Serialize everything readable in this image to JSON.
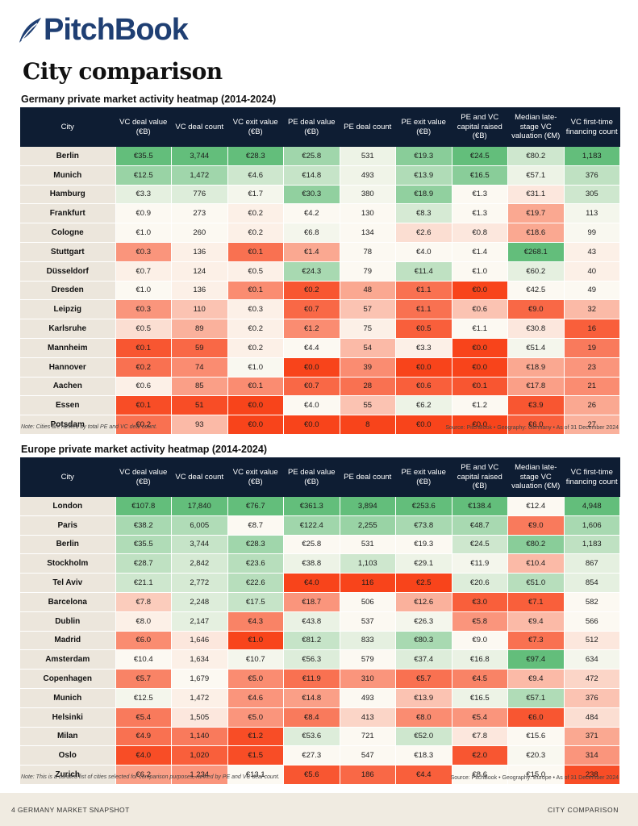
{
  "brand": {
    "name": "PitchBook",
    "color": "#1f3f73"
  },
  "page_title": "City comparison",
  "columns": [
    "City",
    "VC deal value (€B)",
    "VC deal count",
    "VC exit value (€B)",
    "PE deal value (€B)",
    "PE deal count",
    "PE exit value (€B)",
    "PE and VC capital raised (€B)",
    "Median late-stage VC valuation (€M)",
    "VC first-time financing count"
  ],
  "heat_colors": {
    "high": "#63be7b",
    "mid": "#fcf9f2",
    "low": "#f8441b"
  },
  "germany": {
    "title": "Germany private market activity heatmap (2014-2024)",
    "note": "Note: Cities are ranked by total PE and VC deal count.",
    "source": "Source: PitchBook • Geography: Germany • As of 31 December 2024",
    "rows": [
      {
        "city": "Berlin",
        "cells": [
          "€35.5",
          "3,744",
          "€28.3",
          "€25.8",
          "531",
          "€19.3",
          "€24.5",
          "€80.2",
          "1,183"
        ],
        "scores": [
          1,
          1,
          1,
          0.6,
          0.1,
          0.75,
          1,
          0.3,
          1
        ]
      },
      {
        "city": "Munich",
        "cells": [
          "€12.5",
          "1,472",
          "€4.6",
          "€14.8",
          "493",
          "€13.9",
          "€16.5",
          "€57.1",
          "376"
        ],
        "scores": [
          0.65,
          0.6,
          0.3,
          0.35,
          0.08,
          0.5,
          0.75,
          0.1,
          0.4
        ]
      },
      {
        "city": "Hamburg",
        "cells": [
          "€3.3",
          "776",
          "€1.7",
          "€30.3",
          "380",
          "€18.9",
          "€1.3",
          "€31.1",
          "305"
        ],
        "scores": [
          0.15,
          0.2,
          0.05,
          0.7,
          0.05,
          0.7,
          0,
          -0.1,
          0.3
        ]
      },
      {
        "city": "Frankfurt",
        "cells": [
          "€0.9",
          "273",
          "€0.2",
          "€4.2",
          "130",
          "€8.3",
          "€1.3",
          "€19.7",
          "113"
        ],
        "scores": [
          0,
          0,
          -0.05,
          0,
          0,
          0.25,
          0,
          -0.45,
          0.05
        ]
      },
      {
        "city": "Cologne",
        "cells": [
          "€1.0",
          "260",
          "€0.2",
          "€6.8",
          "134",
          "€2.6",
          "€0.8",
          "€18.6",
          "99"
        ],
        "scores": [
          0,
          0,
          -0.05,
          0.05,
          0,
          -0.15,
          -0.1,
          -0.45,
          0.02
        ]
      },
      {
        "city": "Stuttgart",
        "cells": [
          "€0.3",
          "136",
          "€0.1",
          "€1.4",
          "78",
          "€4.0",
          "€1.4",
          "€268.1",
          "43"
        ],
        "scores": [
          -0.55,
          -0.05,
          -0.75,
          -0.45,
          0,
          0,
          0,
          1,
          -0.05
        ]
      },
      {
        "city": "Düsseldorf",
        "cells": [
          "€0.7",
          "124",
          "€0.5",
          "€24.3",
          "79",
          "€11.4",
          "€1.0",
          "€60.2",
          "40"
        ],
        "scores": [
          -0.05,
          -0.05,
          -0.05,
          0.55,
          0,
          0.4,
          0,
          0.15,
          -0.05
        ]
      },
      {
        "city": "Dresden",
        "cells": [
          "€1.0",
          "136",
          "€0.1",
          "€0.2",
          "48",
          "€1.1",
          "€0.0",
          "€42.5",
          "49"
        ],
        "scores": [
          0,
          -0.05,
          -0.6,
          -0.9,
          -0.45,
          -0.75,
          -1,
          0,
          0
        ]
      },
      {
        "city": "Leipzig",
        "cells": [
          "€0.3",
          "110",
          "€0.3",
          "€0.7",
          "57",
          "€1.1",
          "€0.6",
          "€9.0",
          "32"
        ],
        "scores": [
          -0.55,
          -0.3,
          -0.05,
          -0.8,
          -0.3,
          -0.75,
          -0.3,
          -0.8,
          -0.35
        ]
      },
      {
        "city": "Karlsruhe",
        "cells": [
          "€0.5",
          "89",
          "€0.2",
          "€1.2",
          "75",
          "€0.5",
          "€1.1",
          "€30.8",
          "16"
        ],
        "scores": [
          -0.15,
          -0.4,
          -0.05,
          -0.6,
          -0.05,
          -0.85,
          0,
          -0.1,
          -0.85
        ]
      },
      {
        "city": "Mannheim",
        "cells": [
          "€0.1",
          "59",
          "€0.2",
          "€4.4",
          "54",
          "€3.3",
          "€0.0",
          "€51.4",
          "19"
        ],
        "scores": [
          -0.9,
          -0.8,
          -0.05,
          0,
          -0.35,
          -0.05,
          -1,
          0.05,
          -0.7
        ]
      },
      {
        "city": "Hannover",
        "cells": [
          "€0.2",
          "74",
          "€1.0",
          "€0.0",
          "39",
          "€0.0",
          "€0.0",
          "€18.9",
          "23"
        ],
        "scores": [
          -0.75,
          -0.6,
          0.02,
          -1,
          -0.6,
          -1,
          -1,
          -0.45,
          -0.55
        ]
      },
      {
        "city": "Aachen",
        "cells": [
          "€0.6",
          "85",
          "€0.1",
          "€0.7",
          "28",
          "€0.6",
          "€0.1",
          "€17.8",
          "21"
        ],
        "scores": [
          -0.05,
          -0.5,
          -0.6,
          -0.8,
          -0.75,
          -0.85,
          -0.9,
          -0.5,
          -0.6
        ]
      },
      {
        "city": "Essen",
        "cells": [
          "€0.1",
          "51",
          "€0.0",
          "€4.0",
          "55",
          "€6.2",
          "€1.2",
          "€3.9",
          "26"
        ],
        "scores": [
          -0.95,
          -0.95,
          -1,
          0,
          -0.3,
          0.1,
          0,
          -0.9,
          -0.45
        ]
      },
      {
        "city": "Potsdam",
        "cells": [
          "€0.2",
          "93",
          "€0.0",
          "€0.0",
          "8",
          "€0.0",
          "€0.0",
          "€6.0",
          "27"
        ],
        "scores": [
          -0.75,
          -0.35,
          -1,
          -1,
          -1,
          -1,
          -1,
          -0.85,
          -0.4
        ]
      }
    ]
  },
  "europe": {
    "title": "Europe private market activity heatmap (2014-2024)",
    "note": "Note: This is a curated list of cities selected for comparison purposes, ranked by PE and VC deal count.",
    "source": "Source: PitchBook • Geography: Europe • As of 31 December 2024",
    "rows": [
      {
        "city": "London",
        "cells": [
          "€107.8",
          "17,840",
          "€76.7",
          "€361.3",
          "3,894",
          "€253.6",
          "€138.4",
          "€12.4",
          "4,948"
        ],
        "scores": [
          1,
          1,
          1,
          1,
          1,
          1,
          1,
          0,
          1
        ]
      },
      {
        "city": "Paris",
        "cells": [
          "€38.2",
          "6,005",
          "€8.7",
          "€122.4",
          "2,255",
          "€73.8",
          "€48.7",
          "€9.0",
          "1,606"
        ],
        "scores": [
          0.55,
          0.5,
          0,
          0.6,
          0.65,
          0.55,
          0.55,
          -0.7,
          0.55
        ]
      },
      {
        "city": "Berlin",
        "cells": [
          "€35.5",
          "3,744",
          "€28.3",
          "€25.8",
          "531",
          "€19.3",
          "€24.5",
          "€80.2",
          "1,183"
        ],
        "scores": [
          0.5,
          0.35,
          0.6,
          0,
          0,
          0,
          0.3,
          0.75,
          0.4
        ]
      },
      {
        "city": "Stockholm",
        "cells": [
          "€28.7",
          "2,842",
          "€23.6",
          "€38.8",
          "1,103",
          "€29.1",
          "€11.9",
          "€10.4",
          "867"
        ],
        "scores": [
          0.4,
          0.25,
          0.45,
          0.1,
          0.3,
          0.1,
          0.05,
          -0.35,
          0.15
        ]
      },
      {
        "city": "Tel Aviv",
        "cells": [
          "€21.1",
          "2,772",
          "€22.6",
          "€4.0",
          "116",
          "€2.5",
          "€20.6",
          "€51.0",
          "854"
        ],
        "scores": [
          0.3,
          0.25,
          0.45,
          -1,
          -1,
          -1,
          0.2,
          0.45,
          0.15
        ]
      },
      {
        "city": "Barcelona",
        "cells": [
          "€7.8",
          "2,248",
          "€17.5",
          "€18.7",
          "506",
          "€12.6",
          "€3.0",
          "€7.1",
          "582"
        ],
        "scores": [
          -0.25,
          0.2,
          0.35,
          -0.55,
          0,
          -0.4,
          -0.85,
          -0.85,
          0
        ]
      },
      {
        "city": "Dublin",
        "cells": [
          "€8.0",
          "2,147",
          "€4.3",
          "€43.8",
          "537",
          "€26.3",
          "€5.8",
          "€9.4",
          "566"
        ],
        "scores": [
          -0.05,
          0.15,
          -0.65,
          0.12,
          0,
          0.05,
          -0.55,
          -0.35,
          0
        ]
      },
      {
        "city": "Madrid",
        "cells": [
          "€6.0",
          "1,646",
          "€1.0",
          "€81.2",
          "833",
          "€80.3",
          "€9.0",
          "€7.3",
          "512"
        ],
        "scores": [
          -0.6,
          -0.1,
          -1,
          0.35,
          0.15,
          0.55,
          0,
          -0.75,
          -0.1
        ]
      },
      {
        "city": "Amsterdam",
        "cells": [
          "€10.4",
          "1,634",
          "€10.7",
          "€56.3",
          "579",
          "€37.4",
          "€16.8",
          "€97.4",
          "634"
        ],
        "scores": [
          0,
          -0.05,
          0.05,
          0.2,
          0,
          0.2,
          0.12,
          1,
          0.05
        ]
      },
      {
        "city": "Copenhagen",
        "cells": [
          "€5.7",
          "1,679",
          "€5.0",
          "€11.9",
          "310",
          "€5.7",
          "€4.5",
          "€9.4",
          "472"
        ],
        "scores": [
          -0.65,
          0,
          -0.6,
          -0.75,
          -0.55,
          -0.75,
          -0.65,
          -0.35,
          -0.2
        ]
      },
      {
        "city": "Munich",
        "cells": [
          "€12.5",
          "1,472",
          "€4.6",
          "€14.8",
          "493",
          "€13.9",
          "€16.5",
          "€57.1",
          "376"
        ],
        "scores": [
          0.05,
          -0.05,
          -0.55,
          -0.5,
          0,
          -0.3,
          0.1,
          0.5,
          -0.3
        ]
      },
      {
        "city": "Helsinki",
        "cells": [
          "€5.4",
          "1,505",
          "€5.0",
          "€8.4",
          "413",
          "€8.0",
          "€5.4",
          "€6.0",
          "484"
        ],
        "scores": [
          -0.7,
          -0.1,
          -0.55,
          -0.7,
          -0.2,
          -0.6,
          -0.55,
          -0.9,
          -0.15
        ]
      },
      {
        "city": "Milan",
        "cells": [
          "€4.9",
          "1,140",
          "€1.2",
          "€53.6",
          "721",
          "€52.0",
          "€7.8",
          "€15.6",
          "371"
        ],
        "scores": [
          -0.75,
          -0.7,
          -0.95,
          0.2,
          0,
          0.3,
          -0.1,
          0,
          -0.45
        ]
      },
      {
        "city": "Oslo",
        "cells": [
          "€4.0",
          "1,020",
          "€1.5",
          "€27.3",
          "547",
          "€18.3",
          "€2.0",
          "€20.3",
          "314"
        ],
        "scores": [
          -0.95,
          -0.85,
          -0.95,
          0,
          0,
          0,
          -0.9,
          0.02,
          -0.55
        ]
      },
      {
        "city": "Zurich",
        "cells": [
          "€6.2",
          "1,234",
          "€13.1",
          "€5.6",
          "186",
          "€4.4",
          "€8.6",
          "€15.0",
          "238"
        ],
        "scores": [
          -0.5,
          -0.55,
          0,
          -0.9,
          -0.8,
          -0.85,
          0,
          0,
          -0.95
        ]
      }
    ]
  },
  "footer": {
    "left": "4   GERMANY MARKET SNAPSHOT",
    "right": "CITY COMPARISON"
  }
}
